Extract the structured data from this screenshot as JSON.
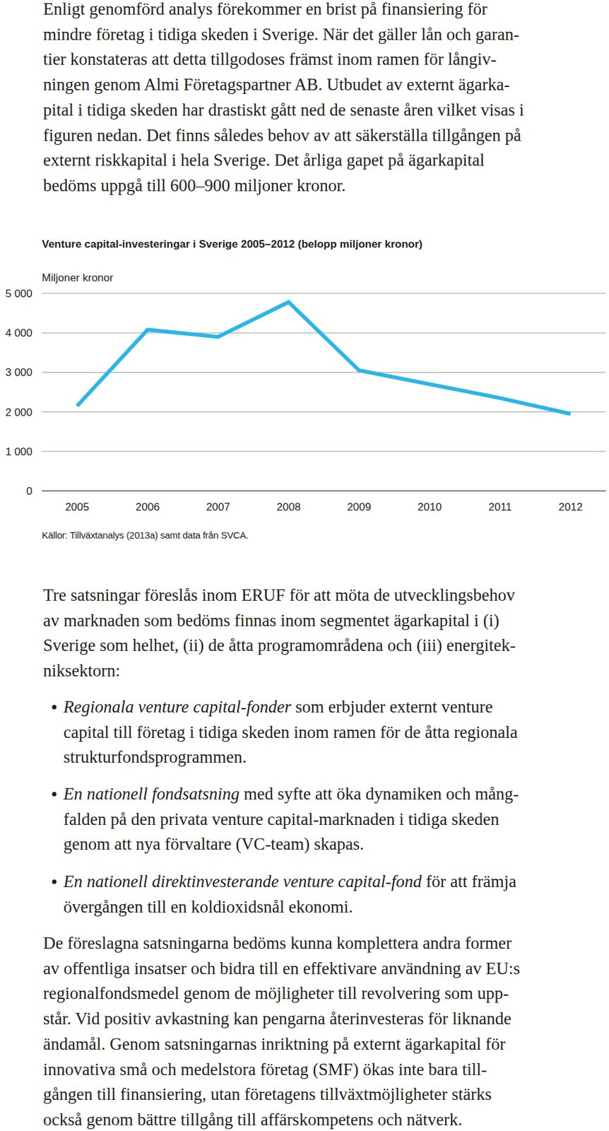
{
  "intro": {
    "lines": [
      "Enligt genomförd analys förekommer en brist på finansiering för",
      "mindre företag i tidiga skeden i Sverige. När det gäller lån och garan-",
      "tier konstateras att detta tillgodoses främst inom ramen för långiv-",
      "ningen genom Almi Företagspartner AB. Utbudet av externt ägarka-",
      "pital i tidiga skeden har drastiskt gått ned de senaste åren vilket visas i",
      "figuren nedan. Det finns således behov av att säkerställa tillgången på",
      "externt riskkapital i hela Sverige. Det årliga gapet på ägarkapital",
      "bedöms uppgå till 600–900 miljoner kronor."
    ]
  },
  "chart_data": {
    "type": "line",
    "title": "Venture capital-investeringar i Sverige 2005–2012 (belopp miljoner kronor)",
    "ylabel": "Miljoner kronor",
    "source": "Källor: Tillväxtanalys (2013a) samt data från SVCA.",
    "categories": [
      "2005",
      "2006",
      "2007",
      "2008",
      "2009",
      "2010",
      "2011",
      "2012"
    ],
    "values": [
      2150,
      4080,
      3900,
      4780,
      3050,
      2700,
      2350,
      1950
    ],
    "color": "#2bb5e8",
    "ylim": [
      0,
      5000
    ],
    "yticks": [
      0,
      {
        "value": 1000,
        "label": "1 000"
      },
      {
        "value": 2000,
        "label": "2 000"
      },
      {
        "value": 3000,
        "label": "3 000"
      },
      {
        "value": 4000,
        "label": "4 000"
      },
      {
        "value": 5000,
        "label": "5 000"
      }
    ],
    "grid": true
  },
  "text": {
    "lines": [
      "Tre satsningar föreslås inom ERUF för att möta de utvecklingsbehov",
      "av marknaden som bedöms finnas inom segmentet ägarkapital i (i)",
      "Sverige som helhet, (ii) de åtta programområdena och (iii) energitek-",
      "niksektorn:"
    ]
  },
  "bullets": [
    {
      "emphasis": "Regionala venture capital-fonder",
      "lines": [
        " som erbjuder externt venture",
        "capital till företag i tidiga skeden inom ramen för de åtta regionala",
        "strukturfondsprogrammen."
      ]
    },
    {
      "emphasis": "En nationell fondsatsning",
      "lines": [
        " med syfte att öka dynamiken och mång-",
        "falden på den privata venture capital-marknaden i tidiga skeden",
        "genom att nya förvaltare (VC-team) skapas."
      ]
    },
    {
      "emphasis": "En nationell direktinvesterande venture capital-fond",
      "lines": [
        " för att främja",
        "övergången till en koldioxidsnål ekonomi."
      ]
    }
  ],
  "closing": {
    "lines": [
      "De föreslagna satsningarna bedöms kunna komplettera andra former",
      "av offentliga insatser och bidra till en effektivare användning av EU:s",
      "regionalfondsmedel genom de möjligheter till revolvering som upp-",
      "står. Vid positiv avkastning kan pengarna återinvesteras för liknande",
      "ändamål. Genom satsningarnas inriktning på externt ägarkapital för",
      "innovativa små och medelstora företag (SMF) ökas inte bara till-",
      "gången till finansiering, utan företagens tillväxtmöjligheter stärks",
      "också genom bättre tillgång till affärskompetens och nätverk."
    ]
  }
}
